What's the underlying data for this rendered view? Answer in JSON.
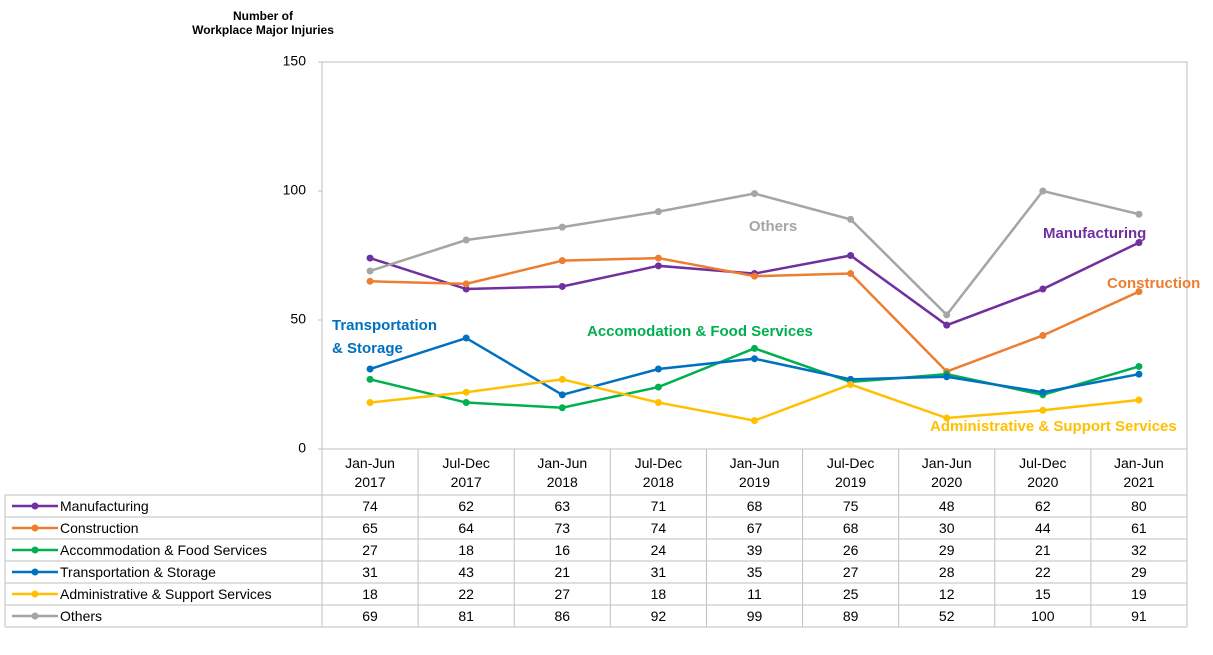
{
  "chart_data": {
    "type": "line",
    "y_label": [
      "Number of",
      "Workplace Major Injuries"
    ],
    "categories": [
      "Jan-Jun 2017",
      "Jul-Dec 2017",
      "Jan-Jun 2018",
      "Jul-Dec 2018",
      "Jan-Jun 2019",
      "Jul-Dec 2019",
      "Jan-Jun 2020",
      "Jul-Dec 2020",
      "Jan-Jun 2021"
    ],
    "ylim": [
      0,
      150
    ],
    "yticks": [
      0,
      50,
      100,
      150
    ],
    "grid": false,
    "series": [
      {
        "name": "Manufacturing",
        "color": "#7030a0",
        "values": [
          74,
          62,
          63,
          71,
          68,
          75,
          48,
          62,
          80
        ]
      },
      {
        "name": "Construction",
        "color": "#ed7d31",
        "values": [
          65,
          64,
          73,
          74,
          67,
          68,
          30,
          44,
          61
        ]
      },
      {
        "name": "Accommodation & Food Services",
        "color": "#00b050",
        "values": [
          27,
          18,
          16,
          24,
          39,
          26,
          29,
          21,
          32
        ]
      },
      {
        "name": "Transportation & Storage",
        "color": "#0070c0",
        "values": [
          31,
          43,
          21,
          31,
          35,
          27,
          28,
          22,
          29
        ]
      },
      {
        "name": "Administrative & Support Services",
        "color": "#ffc000",
        "values": [
          18,
          22,
          27,
          18,
          11,
          25,
          12,
          15,
          19
        ]
      },
      {
        "name": "Others",
        "color": "#a5a5a5",
        "values": [
          69,
          81,
          86,
          92,
          99,
          89,
          52,
          100,
          91
        ]
      }
    ],
    "annotations": [
      {
        "lines": [
          "Others"
        ],
        "color": "#a5a5a5"
      },
      {
        "lines": [
          "Manufacturing"
        ],
        "color": "#7030a0"
      },
      {
        "lines": [
          "Construction"
        ],
        "color": "#ed7d31"
      },
      {
        "lines": [
          "Transportation",
          "& Storage"
        ],
        "color": "#0070c0"
      },
      {
        "lines": [
          "Accomodation & Food Services"
        ],
        "color": "#00b050"
      },
      {
        "lines": [
          "Administrative & Support Services"
        ],
        "color": "#ffc000"
      }
    ]
  }
}
